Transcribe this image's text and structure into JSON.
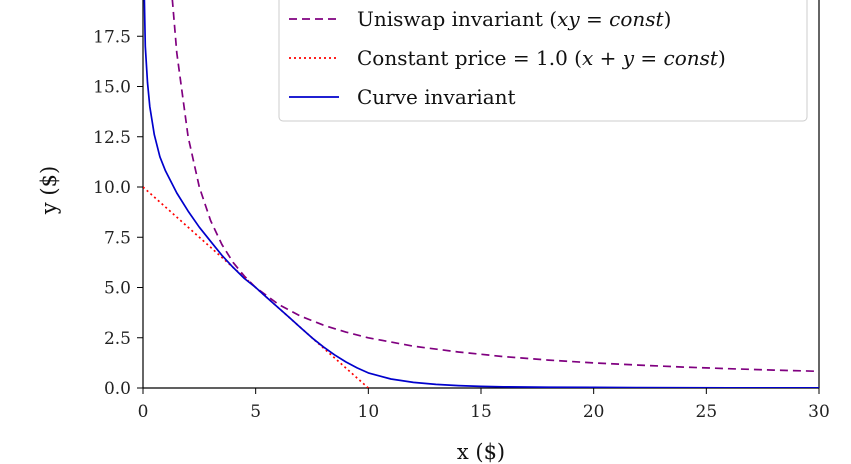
{
  "chart_data": {
    "type": "line",
    "xlabel": "x ($)",
    "ylabel": "y ($)",
    "xlim": [
      0,
      30
    ],
    "ylim": [
      0,
      20
    ],
    "x_ticks": [
      "0",
      "5",
      "10",
      "15",
      "20",
      "25",
      "30"
    ],
    "y_ticks": [
      "0.0",
      "2.5",
      "5.0",
      "7.5",
      "10.0",
      "12.5",
      "15.0",
      "17.5"
    ],
    "legend_position": "top-right",
    "series": [
      {
        "name": "Uniswap invariant (xy = const)",
        "legend_parts": [
          "Uniswap invariant (",
          "xy",
          " = ",
          "const",
          ")"
        ],
        "color": "#800080",
        "style": "dashed",
        "x": [
          1.25,
          1.5,
          2,
          2.5,
          3,
          3.5,
          4,
          4.5,
          5,
          6,
          7,
          8,
          9,
          10,
          12,
          14,
          16,
          18,
          20,
          22,
          24,
          26,
          28,
          30
        ],
        "y": [
          20,
          16.67,
          12.5,
          10,
          8.33,
          7.14,
          6.25,
          5.56,
          5.0,
          4.17,
          3.57,
          3.13,
          2.78,
          2.5,
          2.08,
          1.79,
          1.56,
          1.39,
          1.25,
          1.14,
          1.04,
          0.96,
          0.89,
          0.83
        ]
      },
      {
        "name": "Constant price = 1.0 (x + y = const)",
        "legend_parts": [
          "Constant price = 1.0 (",
          "x",
          " + ",
          "y",
          " = ",
          "const",
          ")"
        ],
        "color": "#ff0000",
        "style": "dotted",
        "x": [
          0,
          10
        ],
        "y": [
          10,
          0
        ]
      },
      {
        "name": "Curve invariant",
        "legend_parts": [
          "Curve invariant"
        ],
        "color": "#0000cc",
        "style": "solid",
        "x": [
          0.05,
          0.1,
          0.2,
          0.3,
          0.5,
          0.75,
          1.0,
          1.5,
          2.0,
          2.5,
          3.0,
          3.5,
          4.0,
          4.5,
          5.0,
          5.5,
          6.0,
          6.5,
          7.0,
          7.5,
          8.0,
          8.5,
          9.0,
          9.5,
          10.0,
          11.0,
          12.0,
          13.0,
          14.0,
          15.0,
          16.0,
          18.0,
          20.0,
          22.0,
          24.0,
          26.0,
          28.0,
          30.0
        ],
        "y": [
          20.0,
          17.0,
          15.2,
          14.0,
          12.6,
          11.5,
          10.8,
          9.7,
          8.8,
          8.0,
          7.3,
          6.6,
          6.0,
          5.45,
          5.0,
          4.5,
          4.0,
          3.5,
          3.0,
          2.5,
          2.05,
          1.65,
          1.3,
          1.0,
          0.75,
          0.45,
          0.28,
          0.18,
          0.12,
          0.08,
          0.06,
          0.04,
          0.03,
          0.02,
          0.015,
          0.012,
          0.01,
          0.008
        ]
      }
    ]
  }
}
